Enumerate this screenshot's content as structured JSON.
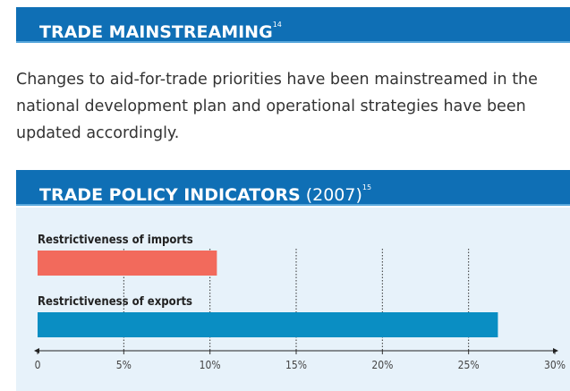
{
  "section": {
    "title": "TRADE MAINSTREAMING",
    "note": "14"
  },
  "paragraph": [
    "Changes to aid-for-trade priorities have been mainstreamed in the",
    "national development plan and operational strategies have been",
    "updated accordingly."
  ],
  "chart_data": {
    "type": "bar",
    "title": "TRADE POLICY INDICATORS",
    "year": "(2007)",
    "note": "15",
    "categories": [
      "Restrictiveness of imports",
      "Restrictiveness of exports"
    ],
    "values": [
      10.4,
      26.7
    ],
    "colors": [
      "#f26a5c",
      "#0a8ec3"
    ],
    "xlim": [
      0,
      30
    ],
    "xticks": [
      0,
      {
        "value": 5,
        "label": "5%"
      },
      {
        "value": 10,
        "label": "10%"
      },
      {
        "value": 15,
        "label": "15%"
      },
      {
        "value": 20,
        "label": "20%"
      },
      {
        "value": 25,
        "label": "25%"
      },
      {
        "value": 30,
        "label": "30%"
      }
    ],
    "grid": true
  }
}
